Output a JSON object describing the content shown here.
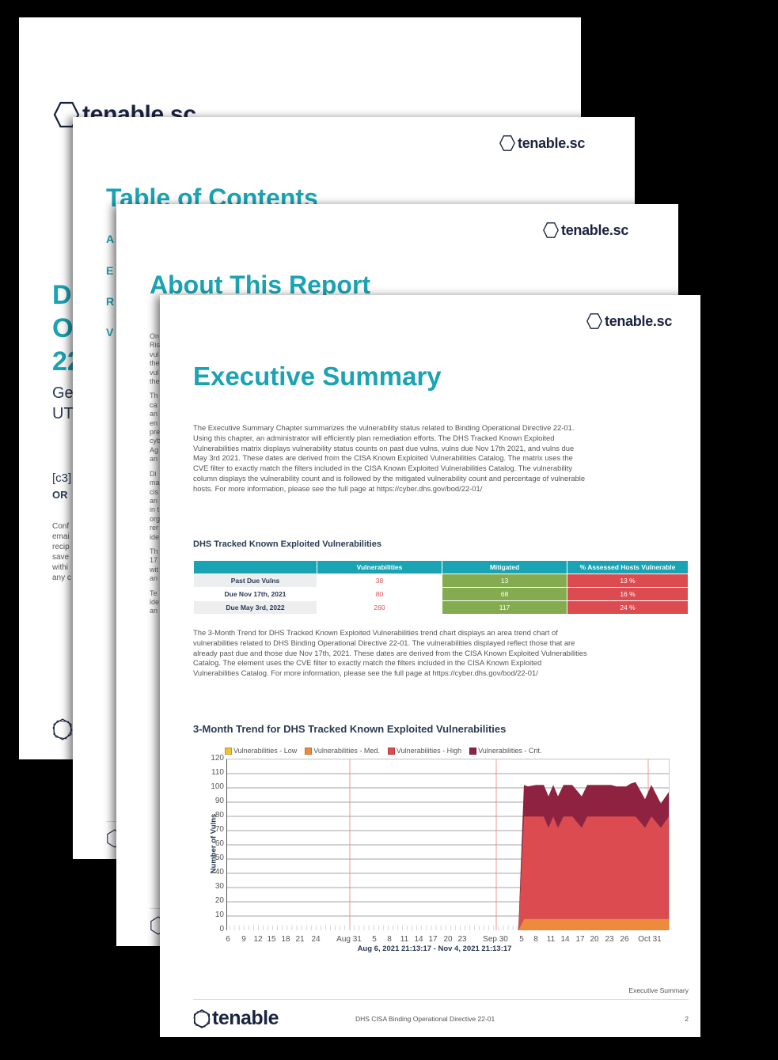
{
  "pages": {
    "cover": {
      "logo_text": "tenable.sc",
      "title_lines": [
        "D",
        "O",
        "22"
      ],
      "subtitle_lines": [
        "Ge",
        "UT"
      ],
      "c3_text": "[c3]",
      "org_text": "OR",
      "confidential_lines": [
        "Conf",
        "emai",
        "recip",
        "save",
        "withi",
        "any c"
      ]
    },
    "toc": {
      "logo_text": "tenable.sc",
      "title": "Table of Contents",
      "items": [
        "A",
        "E",
        "R",
        "V"
      ]
    },
    "about": {
      "logo_text": "tenable.sc",
      "title": "About This Report",
      "paragraphs": [
        [
          "On",
          "Ris",
          "vul",
          "the",
          "vul",
          "the"
        ],
        [
          "Th",
          "ca",
          "an",
          "en",
          "pre",
          "cyb",
          "Ag",
          "an"
        ],
        [
          "Di",
          "ma",
          "cis",
          "an",
          "in t",
          "org",
          "rer",
          "ide"
        ],
        [
          "Th",
          "17",
          "wit",
          "an"
        ],
        [
          "Te",
          "ide",
          "an"
        ]
      ]
    },
    "executive": {
      "logo_text": "tenable.sc",
      "title": "Executive Summary",
      "intro": "The Executive Summary Chapter summarizes the vulnerability status related to Binding Operational Directive 22-01. Using this chapter, an administrator will efficiently plan remediation efforts. The DHS Tracked Known Exploited Vulnerabilities matrix displays vulnerability status counts on past due vulns, vulns due Nov 17th 2021, and vulns due May 3rd 2021. These dates are derived from the CISA Known Exploited Vulnerabilities Catalog. The matrix uses the CVE filter to exactly match the filters included in the CISA Known Exploited Vulnerabilities Catalog. The vulnerability column displays the vulnerability count and is followed by the mitigated vulnerability count and percentage of vulnerable hosts. For more information, please see the full page at https://cyber.dhs.gov/bod/22-01/",
      "matrix": {
        "title": "DHS Tracked Known Exploited Vulnerabilities",
        "headers": [
          "",
          "Vulnerabilities",
          "Mitigated",
          "% Assessed Hosts Vulnerable"
        ],
        "rows": [
          {
            "label": "Past Due Vulns",
            "vulns": "38",
            "mitigated": "13",
            "pct": "13 %"
          },
          {
            "label": "Due Nov 17th, 2021",
            "vulns": "80",
            "mitigated": "68",
            "pct": "16 %"
          },
          {
            "label": "Due May 3rd, 2022",
            "vulns": "260",
            "mitigated": "117",
            "pct": "24 %"
          }
        ]
      },
      "trend_text": "The 3-Month Trend for DHS Tracked Known Exploited Vulnerabilities trend chart displays an area trend chart of vulnerabilities related to DHS Binding Operational Directive 22-01. The vulnerabilities displayed reflect those that are already past due and those due Nov 17th, 2021. These dates are derived from the CISA Known Exploited Vulnerabilities Catalog. The element uses the CVE filter to exactly match the filters included in the CISA Known Exploited Vulnerabilities Catalog. For more information, please see the full page at https://cyber.dhs.gov/bod/22-01/",
      "chart_title": "3-Month Trend for DHS Tracked Known Exploited Vulnerabilities",
      "footer": {
        "section": "Executive Summary",
        "brand": "tenable",
        "doc_title": "DHS CISA Binding Operational Directive 22-01",
        "page_number": "2"
      }
    }
  },
  "colors": {
    "accent": "#1aa3b3",
    "navy": "#1a2340",
    "mitigated_green": "#84ab4f",
    "vuln_red": "#dc4b50",
    "low": "#f2c12e",
    "med": "#ee8a3c",
    "high": "#dc4b50",
    "crit": "#8f2240"
  },
  "chart_data": {
    "type": "area",
    "title": "3-Month Trend for DHS Tracked Known Exploited Vulnerabilities",
    "xlabel": "Aug 6, 2021 21:13:17 - Nov 4, 2021 21:13:17",
    "ylabel": "Number of Vulns",
    "ylim": [
      0,
      120
    ],
    "yticks": [
      0,
      10,
      20,
      30,
      40,
      50,
      60,
      70,
      80,
      90,
      100,
      110,
      120
    ],
    "xtick_labels": [
      "6",
      "9",
      "12",
      "15",
      "18",
      "21",
      "24",
      "Aug 31",
      "5",
      "8",
      "11",
      "14",
      "17",
      "20",
      "23",
      "Sep 30",
      "5",
      "8",
      "11",
      "14",
      "17",
      "20",
      "23",
      "26",
      "Oct 31"
    ],
    "grid": true,
    "legend_position": "top",
    "stacked": true,
    "x": [
      "Oct 4",
      "Oct 5",
      "Oct 6",
      "Oct 8",
      "Oct 10",
      "Oct 11",
      "Oct 12",
      "Oct 13",
      "Oct 14",
      "Oct 16",
      "Oct 19",
      "Oct 20",
      "Oct 21",
      "Oct 25",
      "Oct 26",
      "Oct 28",
      "Oct 29",
      "Oct 30",
      "Nov 1",
      "Nov 2",
      "Nov 3",
      "Nov 4"
    ],
    "series": [
      {
        "name": "Vulnerabilities - Low",
        "values": [
          0,
          0,
          0,
          0,
          0,
          0,
          0,
          0,
          0,
          0,
          0,
          0,
          0,
          0,
          0,
          0,
          0,
          0,
          0,
          0,
          0,
          0
        ]
      },
      {
        "name": "Vulnerabilities - Med.",
        "values": [
          0,
          8,
          8,
          8,
          8,
          8,
          8,
          8,
          8,
          8,
          8,
          8,
          8,
          8,
          8,
          8,
          8,
          8,
          8,
          8,
          8,
          8
        ]
      },
      {
        "name": "Vulnerabilities - High",
        "values": [
          0,
          72,
          72,
          72,
          72,
          64,
          72,
          64,
          72,
          72,
          64,
          72,
          72,
          72,
          72,
          72,
          72,
          72,
          64,
          72,
          64,
          72
        ]
      },
      {
        "name": "Vulnerabilities - Crit.",
        "values": [
          0,
          22,
          21,
          22,
          22,
          22,
          22,
          22,
          22,
          22,
          22,
          22,
          22,
          22,
          21,
          21,
          23,
          24,
          20,
          22,
          17,
          17
        ]
      }
    ],
    "legend": [
      "Vulnerabilities - Low",
      "Vulnerabilities - Med.",
      "Vulnerabilities - High",
      "Vulnerabilities - Crit."
    ]
  }
}
